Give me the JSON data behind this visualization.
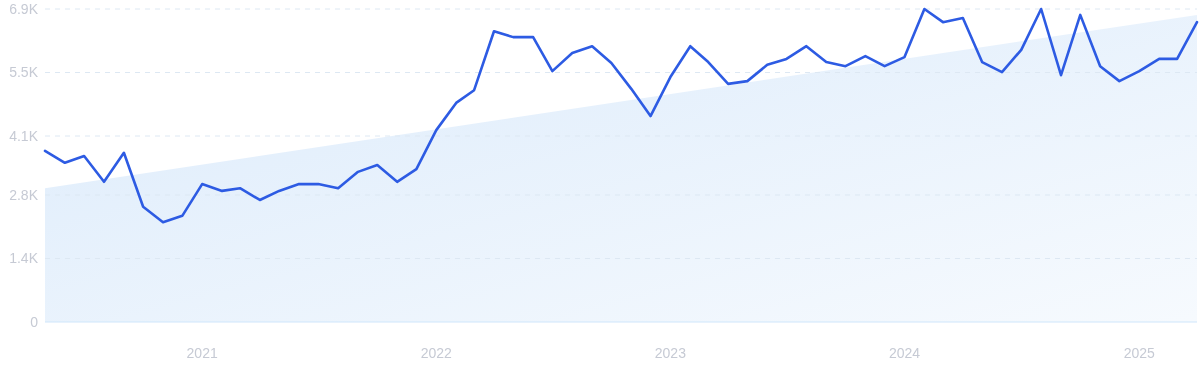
{
  "chart_data": {
    "type": "line",
    "x": [
      "2020-05",
      "2020-06",
      "2020-07",
      "2020-08",
      "2020-09",
      "2020-10",
      "2020-11",
      "2020-12",
      "2021-01",
      "2021-02",
      "2021-03",
      "2021-04",
      "2021-05",
      "2021-06",
      "2021-07",
      "2021-08",
      "2021-09",
      "2021-10",
      "2021-11",
      "2021-12",
      "2022-01",
      "2022-02",
      "2022-03",
      "2022-04",
      "2022-05",
      "2022-06",
      "2022-07",
      "2022-08",
      "2022-09",
      "2022-10",
      "2022-11",
      "2022-12",
      "2023-01",
      "2023-02",
      "2023-03",
      "2023-04",
      "2023-05",
      "2023-06",
      "2023-07",
      "2023-08",
      "2023-09",
      "2023-10",
      "2023-11",
      "2023-12",
      "2024-01",
      "2024-02",
      "2024-03",
      "2024-04",
      "2024-05",
      "2024-06",
      "2024-07",
      "2024-08",
      "2024-09",
      "2024-10",
      "2024-11",
      "2024-12",
      "2025-01",
      "2025-02",
      "2025-03",
      "2025-04"
    ],
    "series": [
      {
        "type": "area",
        "color": "#dcebfb",
        "x": [
          "2020-05",
          "2025-04"
        ],
        "values": [
          2950,
          6770
        ]
      },
      {
        "color": "#2d5be3",
        "values": [
          3770,
          3510,
          3660,
          3090,
          3730,
          2540,
          2200,
          2340,
          3040,
          2890,
          2950,
          2690,
          2890,
          3040,
          3040,
          2950,
          3310,
          3460,
          3090,
          3370,
          4230,
          4830,
          5110,
          6410,
          6280,
          6280,
          5530,
          5930,
          6080,
          5710,
          5140,
          4540,
          5400,
          6080,
          5730,
          5250,
          5310,
          5670,
          5800,
          6080,
          5730,
          5640,
          5860,
          5640,
          5840,
          6900,
          6610,
          6700,
          5730,
          5510,
          6000,
          6900,
          5440,
          6770,
          5640,
          5310,
          5530,
          5800,
          5800,
          6610
        ]
      }
    ],
    "xlim": [
      "2020-05",
      "2025-04"
    ],
    "xticks": [
      {
        "value": "2021",
        "label": "2021"
      },
      {
        "value": "2022",
        "label": "2022"
      },
      {
        "value": "2023",
        "label": "2023"
      },
      {
        "value": "2024",
        "label": "2024"
      },
      {
        "value": "2025",
        "label": "2025"
      }
    ],
    "ylim": [
      0,
      6900
    ],
    "yticks": [
      0,
      {
        "value": 1400,
        "label": "1.4K"
      },
      {
        "value": 2800,
        "label": "2.8K"
      },
      {
        "value": 4100,
        "label": "4.1K"
      },
      {
        "value": 5500,
        "label": "5.5K"
      },
      {
        "value": 6900,
        "label": "6.9K"
      }
    ],
    "grid": "y",
    "line_style": "solid",
    "marker": "none"
  }
}
